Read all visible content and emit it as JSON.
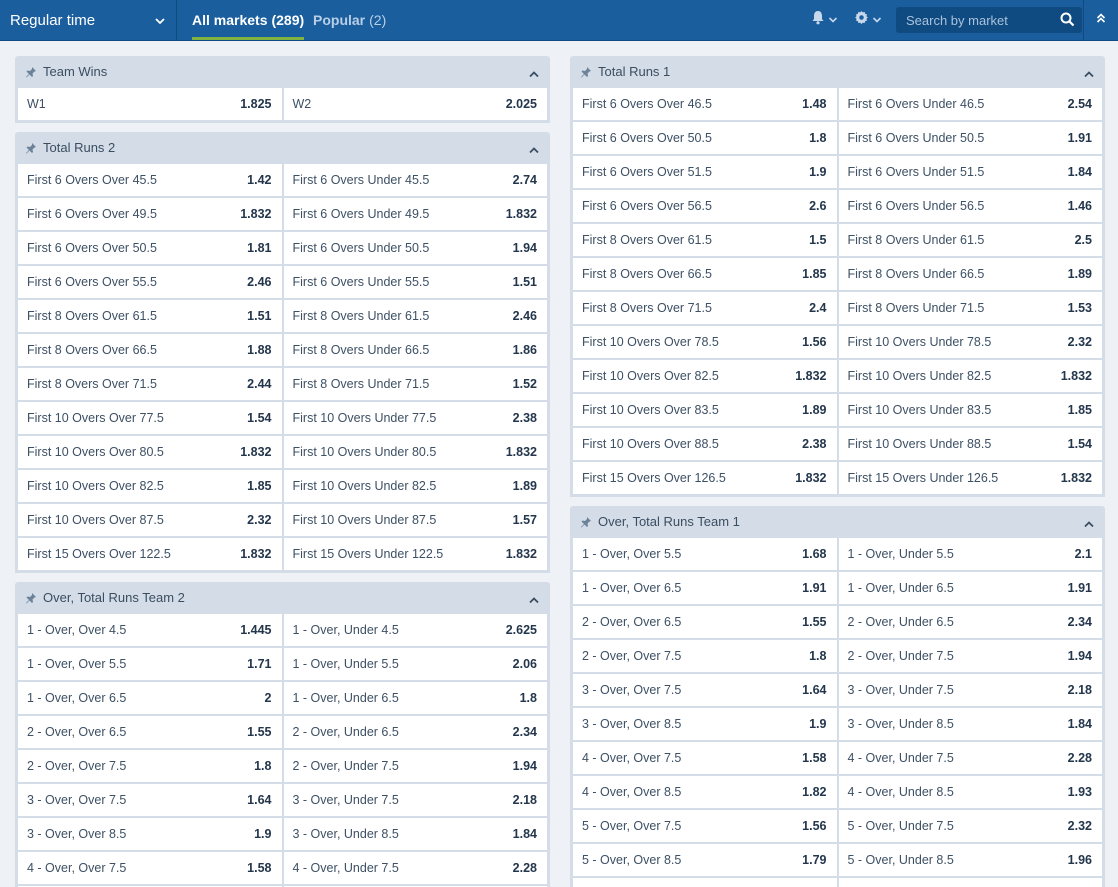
{
  "header": {
    "period_label": "Regular time",
    "tabs": [
      {
        "label": "All markets",
        "count": "(289)"
      },
      {
        "label": "Popular",
        "count": "(2)"
      }
    ],
    "search_placeholder": "Search by market"
  },
  "colors": {
    "topbar": "#1a5e9e",
    "accent": "#7fb241",
    "panel_header": "#d4dde7",
    "background": "#eef2f6"
  },
  "markets": {
    "team_wins": {
      "title": "Team Wins",
      "rows": [
        [
          {
            "label": "W1",
            "odd": "1.825"
          },
          {
            "label": "W2",
            "odd": "2.025"
          }
        ]
      ]
    },
    "total_runs_2": {
      "title": "Total Runs 2",
      "rows": [
        [
          {
            "label": "First 6 Overs Over 45.5",
            "odd": "1.42"
          },
          {
            "label": "First 6 Overs Under 45.5",
            "odd": "2.74"
          }
        ],
        [
          {
            "label": "First 6 Overs Over 49.5",
            "odd": "1.832"
          },
          {
            "label": "First 6 Overs Under 49.5",
            "odd": "1.832"
          }
        ],
        [
          {
            "label": "First 6 Overs Over 50.5",
            "odd": "1.81"
          },
          {
            "label": "First 6 Overs Under 50.5",
            "odd": "1.94"
          }
        ],
        [
          {
            "label": "First 6 Overs Over 55.5",
            "odd": "2.46"
          },
          {
            "label": "First 6 Overs Under 55.5",
            "odd": "1.51"
          }
        ],
        [
          {
            "label": "First 8 Overs Over 61.5",
            "odd": "1.51"
          },
          {
            "label": "First 8 Overs Under 61.5",
            "odd": "2.46"
          }
        ],
        [
          {
            "label": "First 8 Overs Over 66.5",
            "odd": "1.88"
          },
          {
            "label": "First 8 Overs Under 66.5",
            "odd": "1.86"
          }
        ],
        [
          {
            "label": "First 8 Overs Over 71.5",
            "odd": "2.44"
          },
          {
            "label": "First 8 Overs Under 71.5",
            "odd": "1.52"
          }
        ],
        [
          {
            "label": "First 10 Overs Over 77.5",
            "odd": "1.54"
          },
          {
            "label": "First 10 Overs Under 77.5",
            "odd": "2.38"
          }
        ],
        [
          {
            "label": "First 10 Overs Over 80.5",
            "odd": "1.832"
          },
          {
            "label": "First 10 Overs Under 80.5",
            "odd": "1.832"
          }
        ],
        [
          {
            "label": "First 10 Overs Over 82.5",
            "odd": "1.85"
          },
          {
            "label": "First 10 Overs Under 82.5",
            "odd": "1.89"
          }
        ],
        [
          {
            "label": "First 10 Overs Over 87.5",
            "odd": "2.32"
          },
          {
            "label": "First 10 Overs Under 87.5",
            "odd": "1.57"
          }
        ],
        [
          {
            "label": "First 15 Overs Over 122.5",
            "odd": "1.832"
          },
          {
            "label": "First 15 Overs Under 122.5",
            "odd": "1.832"
          }
        ]
      ]
    },
    "over_total_runs_team_2": {
      "title": "Over, Total Runs Team 2",
      "rows": [
        [
          {
            "label": "1 - Over, Over 4.5",
            "odd": "1.445"
          },
          {
            "label": "1 - Over, Under 4.5",
            "odd": "2.625"
          }
        ],
        [
          {
            "label": "1 - Over, Over 5.5",
            "odd": "1.71"
          },
          {
            "label": "1 - Over, Under 5.5",
            "odd": "2.06"
          }
        ],
        [
          {
            "label": "1 - Over, Over 6.5",
            "odd": "2"
          },
          {
            "label": "1 - Over, Under 6.5",
            "odd": "1.8"
          }
        ],
        [
          {
            "label": "2 - Over, Over 6.5",
            "odd": "1.55"
          },
          {
            "label": "2 - Over, Under 6.5",
            "odd": "2.34"
          }
        ],
        [
          {
            "label": "2 - Over, Over 7.5",
            "odd": "1.8"
          },
          {
            "label": "2 - Over, Under 7.5",
            "odd": "1.94"
          }
        ],
        [
          {
            "label": "3 - Over, Over 7.5",
            "odd": "1.64"
          },
          {
            "label": "3 - Over, Under 7.5",
            "odd": "2.18"
          }
        ],
        [
          {
            "label": "3 - Over, Over 8.5",
            "odd": "1.9"
          },
          {
            "label": "3 - Over, Under 8.5",
            "odd": "1.84"
          }
        ],
        [
          {
            "label": "4 - Over, Over 7.5",
            "odd": "1.58"
          },
          {
            "label": "4 - Over, Under 7.5",
            "odd": "2.28"
          }
        ],
        [
          {
            "label": "",
            "odd": ""
          },
          {
            "label": "",
            "odd": ""
          }
        ]
      ]
    },
    "total_runs_1": {
      "title": "Total Runs 1",
      "rows": [
        [
          {
            "label": "First 6 Overs Over 46.5",
            "odd": "1.48"
          },
          {
            "label": "First 6 Overs Under 46.5",
            "odd": "2.54"
          }
        ],
        [
          {
            "label": "First 6 Overs Over 50.5",
            "odd": "1.8"
          },
          {
            "label": "First 6 Overs Under 50.5",
            "odd": "1.91"
          }
        ],
        [
          {
            "label": "First 6 Overs Over 51.5",
            "odd": "1.9"
          },
          {
            "label": "First 6 Overs Under 51.5",
            "odd": "1.84"
          }
        ],
        [
          {
            "label": "First 6 Overs Over 56.5",
            "odd": "2.6"
          },
          {
            "label": "First 6 Overs Under 56.5",
            "odd": "1.46"
          }
        ],
        [
          {
            "label": "First 8 Overs Over 61.5",
            "odd": "1.5"
          },
          {
            "label": "First 8 Overs Under 61.5",
            "odd": "2.5"
          }
        ],
        [
          {
            "label": "First 8 Overs Over 66.5",
            "odd": "1.85"
          },
          {
            "label": "First 8 Overs Under 66.5",
            "odd": "1.89"
          }
        ],
        [
          {
            "label": "First 8 Overs Over 71.5",
            "odd": "2.4"
          },
          {
            "label": "First 8 Overs Under 71.5",
            "odd": "1.53"
          }
        ],
        [
          {
            "label": "First 10 Overs Over 78.5",
            "odd": "1.56"
          },
          {
            "label": "First 10 Overs Under 78.5",
            "odd": "2.32"
          }
        ],
        [
          {
            "label": "First 10 Overs Over 82.5",
            "odd": "1.832"
          },
          {
            "label": "First 10 Overs Under 82.5",
            "odd": "1.832"
          }
        ],
        [
          {
            "label": "First 10 Overs Over 83.5",
            "odd": "1.89"
          },
          {
            "label": "First 10 Overs Under 83.5",
            "odd": "1.85"
          }
        ],
        [
          {
            "label": "First 10 Overs Over 88.5",
            "odd": "2.38"
          },
          {
            "label": "First 10 Overs Under 88.5",
            "odd": "1.54"
          }
        ],
        [
          {
            "label": "First 15 Overs Over 126.5",
            "odd": "1.832"
          },
          {
            "label": "First 15 Overs Under 126.5",
            "odd": "1.832"
          }
        ]
      ]
    },
    "over_total_runs_team_1": {
      "title": "Over, Total Runs Team 1",
      "rows": [
        [
          {
            "label": "1 - Over, Over 5.5",
            "odd": "1.68"
          },
          {
            "label": "1 - Over, Under 5.5",
            "odd": "2.1"
          }
        ],
        [
          {
            "label": "1 - Over, Over 6.5",
            "odd": "1.91"
          },
          {
            "label": "1 - Over, Under 6.5",
            "odd": "1.91"
          }
        ],
        [
          {
            "label": "2 - Over, Over 6.5",
            "odd": "1.55"
          },
          {
            "label": "2 - Over, Under 6.5",
            "odd": "2.34"
          }
        ],
        [
          {
            "label": "2 - Over, Over 7.5",
            "odd": "1.8"
          },
          {
            "label": "2 - Over, Under 7.5",
            "odd": "1.94"
          }
        ],
        [
          {
            "label": "3 - Over, Over 7.5",
            "odd": "1.64"
          },
          {
            "label": "3 - Over, Under 7.5",
            "odd": "2.18"
          }
        ],
        [
          {
            "label": "3 - Over, Over 8.5",
            "odd": "1.9"
          },
          {
            "label": "3 - Over, Under 8.5",
            "odd": "1.84"
          }
        ],
        [
          {
            "label": "4 - Over, Over 7.5",
            "odd": "1.58"
          },
          {
            "label": "4 - Over, Under 7.5",
            "odd": "2.28"
          }
        ],
        [
          {
            "label": "4 - Over, Over 8.5",
            "odd": "1.82"
          },
          {
            "label": "4 - Over, Under 8.5",
            "odd": "1.93"
          }
        ],
        [
          {
            "label": "5 - Over, Over 7.5",
            "odd": "1.56"
          },
          {
            "label": "5 - Over, Under 7.5",
            "odd": "2.32"
          }
        ],
        [
          {
            "label": "5 - Over, Over 8.5",
            "odd": "1.79"
          },
          {
            "label": "5 - Over, Under 8.5",
            "odd": "1.96"
          }
        ],
        [
          {
            "label": "",
            "odd": ""
          },
          {
            "label": "",
            "odd": ""
          }
        ]
      ]
    }
  }
}
